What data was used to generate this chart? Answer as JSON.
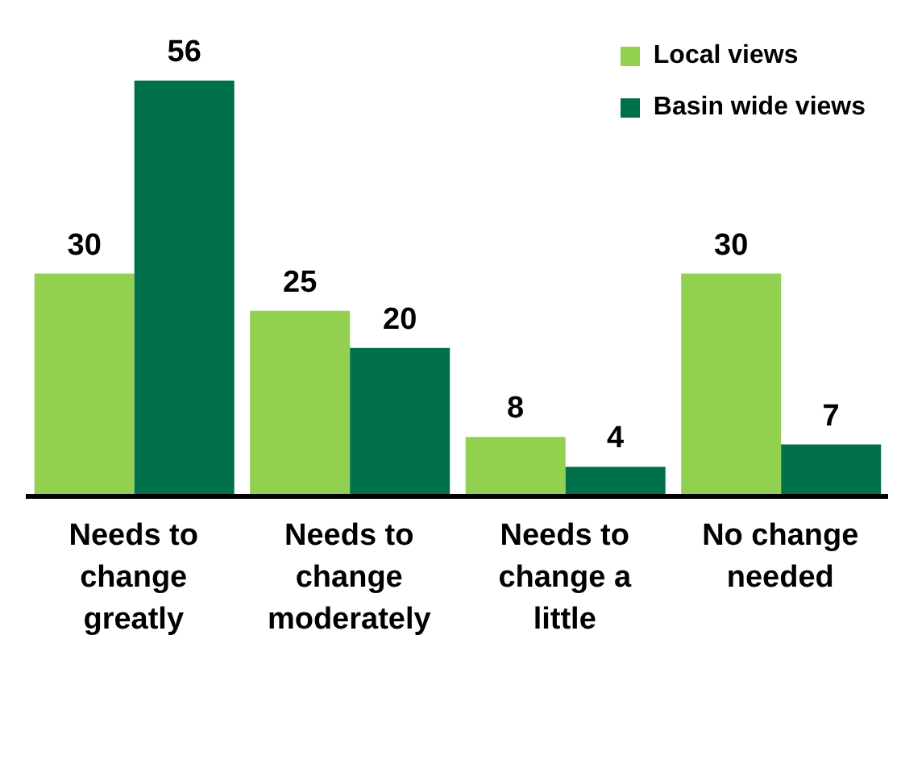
{
  "chart_data": {
    "type": "bar",
    "categories": [
      "Needs to change greatly",
      "Needs to change moderately",
      "Needs to change a little",
      "No change needed"
    ],
    "series": [
      {
        "name": "Local views",
        "color": "#92d050",
        "values": [
          30,
          25,
          8,
          30
        ]
      },
      {
        "name": "Basin wide views",
        "color": "#00704a",
        "values": [
          56,
          20,
          4,
          7
        ]
      }
    ],
    "data_labels": true,
    "legend": "top right",
    "grid": false
  }
}
